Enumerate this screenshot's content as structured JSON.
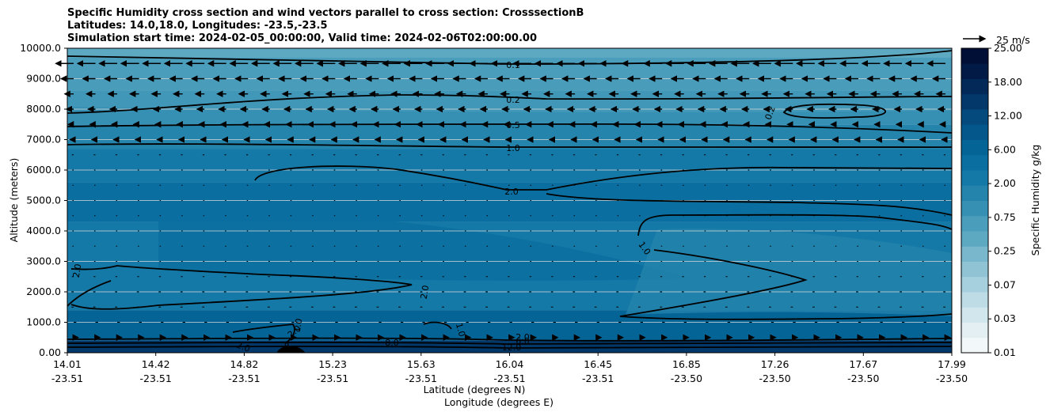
{
  "chart_data": {
    "type": "heatmap",
    "title_lines": [
      "Specific Humidity cross section and wind vectors parallel to cross section: CrosssectionB",
      "Latitudes: 14.0,18.0, Longitudes: -23.5,-23.5",
      "Simulation start time: 2024-02-05_00:00:00, Valid time: 2024-02-06T02:00:00.00"
    ],
    "ylabel": "Altitude (meters)",
    "xlabel_lat": "Latitude (degrees N)",
    "xlabel_lon": "Longitude (degrees E)",
    "ylim": [
      0,
      10000
    ],
    "y_ticks": [
      "0.00",
      "1000.0",
      "2000.0",
      "3000.0",
      "4000.0",
      "5000.0",
      "6000.0",
      "7000.0",
      "8000.0",
      "9000.0",
      "10000.0"
    ],
    "x_ticks": [
      {
        "lat": "14.01",
        "lon": "-23.51"
      },
      {
        "lat": "14.42",
        "lon": "-23.51"
      },
      {
        "lat": "14.82",
        "lon": "-23.51"
      },
      {
        "lat": "15.23",
        "lon": "-23.51"
      },
      {
        "lat": "15.63",
        "lon": "-23.51"
      },
      {
        "lat": "16.04",
        "lon": "-23.51"
      },
      {
        "lat": "16.45",
        "lon": "-23.51"
      },
      {
        "lat": "16.85",
        "lon": "-23.50"
      },
      {
        "lat": "17.26",
        "lon": "-23.50"
      },
      {
        "lat": "17.67",
        "lon": "-23.50"
      },
      {
        "lat": "17.99",
        "lon": "-23.50"
      }
    ],
    "colorbar": {
      "label": "Specific Humidity g/kg",
      "tick_labels": [
        "0.01",
        "0.03",
        "0.07",
        "0.25",
        "0.75",
        "2.00",
        "6.00",
        "12.00",
        "18.00",
        "25.00"
      ],
      "colors": [
        "#f2f8fa",
        "#e3eff3",
        "#d1e6ed",
        "#bddce6",
        "#a7d0de",
        "#90c4d5",
        "#78b7cc",
        "#5ea9c2",
        "#4a9dbb",
        "#3690b4",
        "#2484ac",
        "#1479a6",
        "#0a6fa0",
        "#056496",
        "#04578a",
        "#044a7c",
        "#03396a",
        "#022957",
        "#021b46",
        "#010e36"
      ]
    },
    "quiver_key": {
      "label": "25 m/s",
      "value": 25
    },
    "contour_labels": [
      "0.1",
      "0.2",
      "0.5",
      "1.0",
      "2.0",
      "0.2",
      "1.0",
      "2.0",
      "2.0",
      "1.0",
      "1.0",
      "2.0",
      "6.0",
      "8.0",
      "8.0",
      "12.0",
      "2.0",
      "2.0"
    ],
    "wind_rows_m": [
      9500,
      9000,
      8500,
      8000,
      7500,
      7000,
      6500,
      6000,
      5500,
      5000,
      4500,
      4000,
      3500,
      3000,
      2500,
      2000,
      1500,
      1000,
      500
    ],
    "wind_speed_by_row_ms": [
      20,
      14,
      10,
      8,
      6,
      4,
      2,
      1.5,
      1.2,
      1,
      1,
      1,
      1.2,
      1.5,
      2,
      2.5,
      2.5,
      3,
      5
    ],
    "humidity_bands": [
      {
        "from_m": 9700,
        "to_m": 10000,
        "band": 7
      },
      {
        "from_m": 8600,
        "to_m": 9700,
        "band": 8
      },
      {
        "from_m": 7500,
        "to_m": 8600,
        "band": 9
      },
      {
        "from_m": 6700,
        "to_m": 7500,
        "band": 10
      },
      {
        "from_m": 5600,
        "to_m": 6700,
        "band": 11
      },
      {
        "from_m": 4300,
        "to_m": 5600,
        "band": 12
      },
      {
        "from_m": 1400,
        "to_m": 4300,
        "band": 11
      },
      {
        "from_m": 400,
        "to_m": 1400,
        "band": 13
      },
      {
        "from_m": 0,
        "to_m": 400,
        "band": 16
      }
    ]
  }
}
